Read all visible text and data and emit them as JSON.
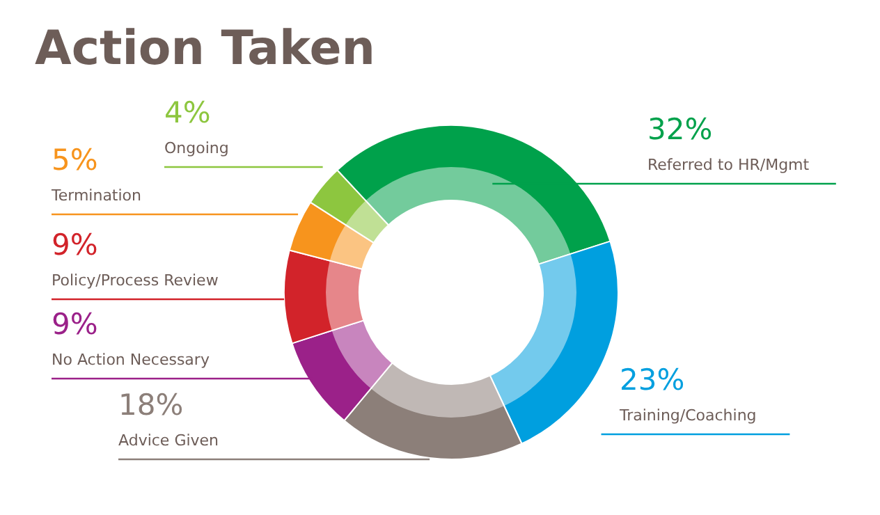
{
  "chart_data": {
    "type": "donut",
    "title": "Action Taken",
    "categories": [
      "Referred to HR/Mgmt",
      "Training/Coaching",
      "Advice Given",
      "No Action Necessary",
      "Policy/Process Review",
      "Termination",
      "Ongoing"
    ],
    "values": [
      32,
      23,
      18,
      9,
      9,
      5,
      4
    ],
    "value_labels": [
      "32%",
      "23%",
      "18%",
      "9%",
      "9%",
      "5%",
      "4%"
    ],
    "colors": [
      "#00a14b",
      "#009fdf",
      "#8c7f79",
      "#9b2189",
      "#d2232a",
      "#f7941d",
      "#8dc63f"
    ]
  }
}
